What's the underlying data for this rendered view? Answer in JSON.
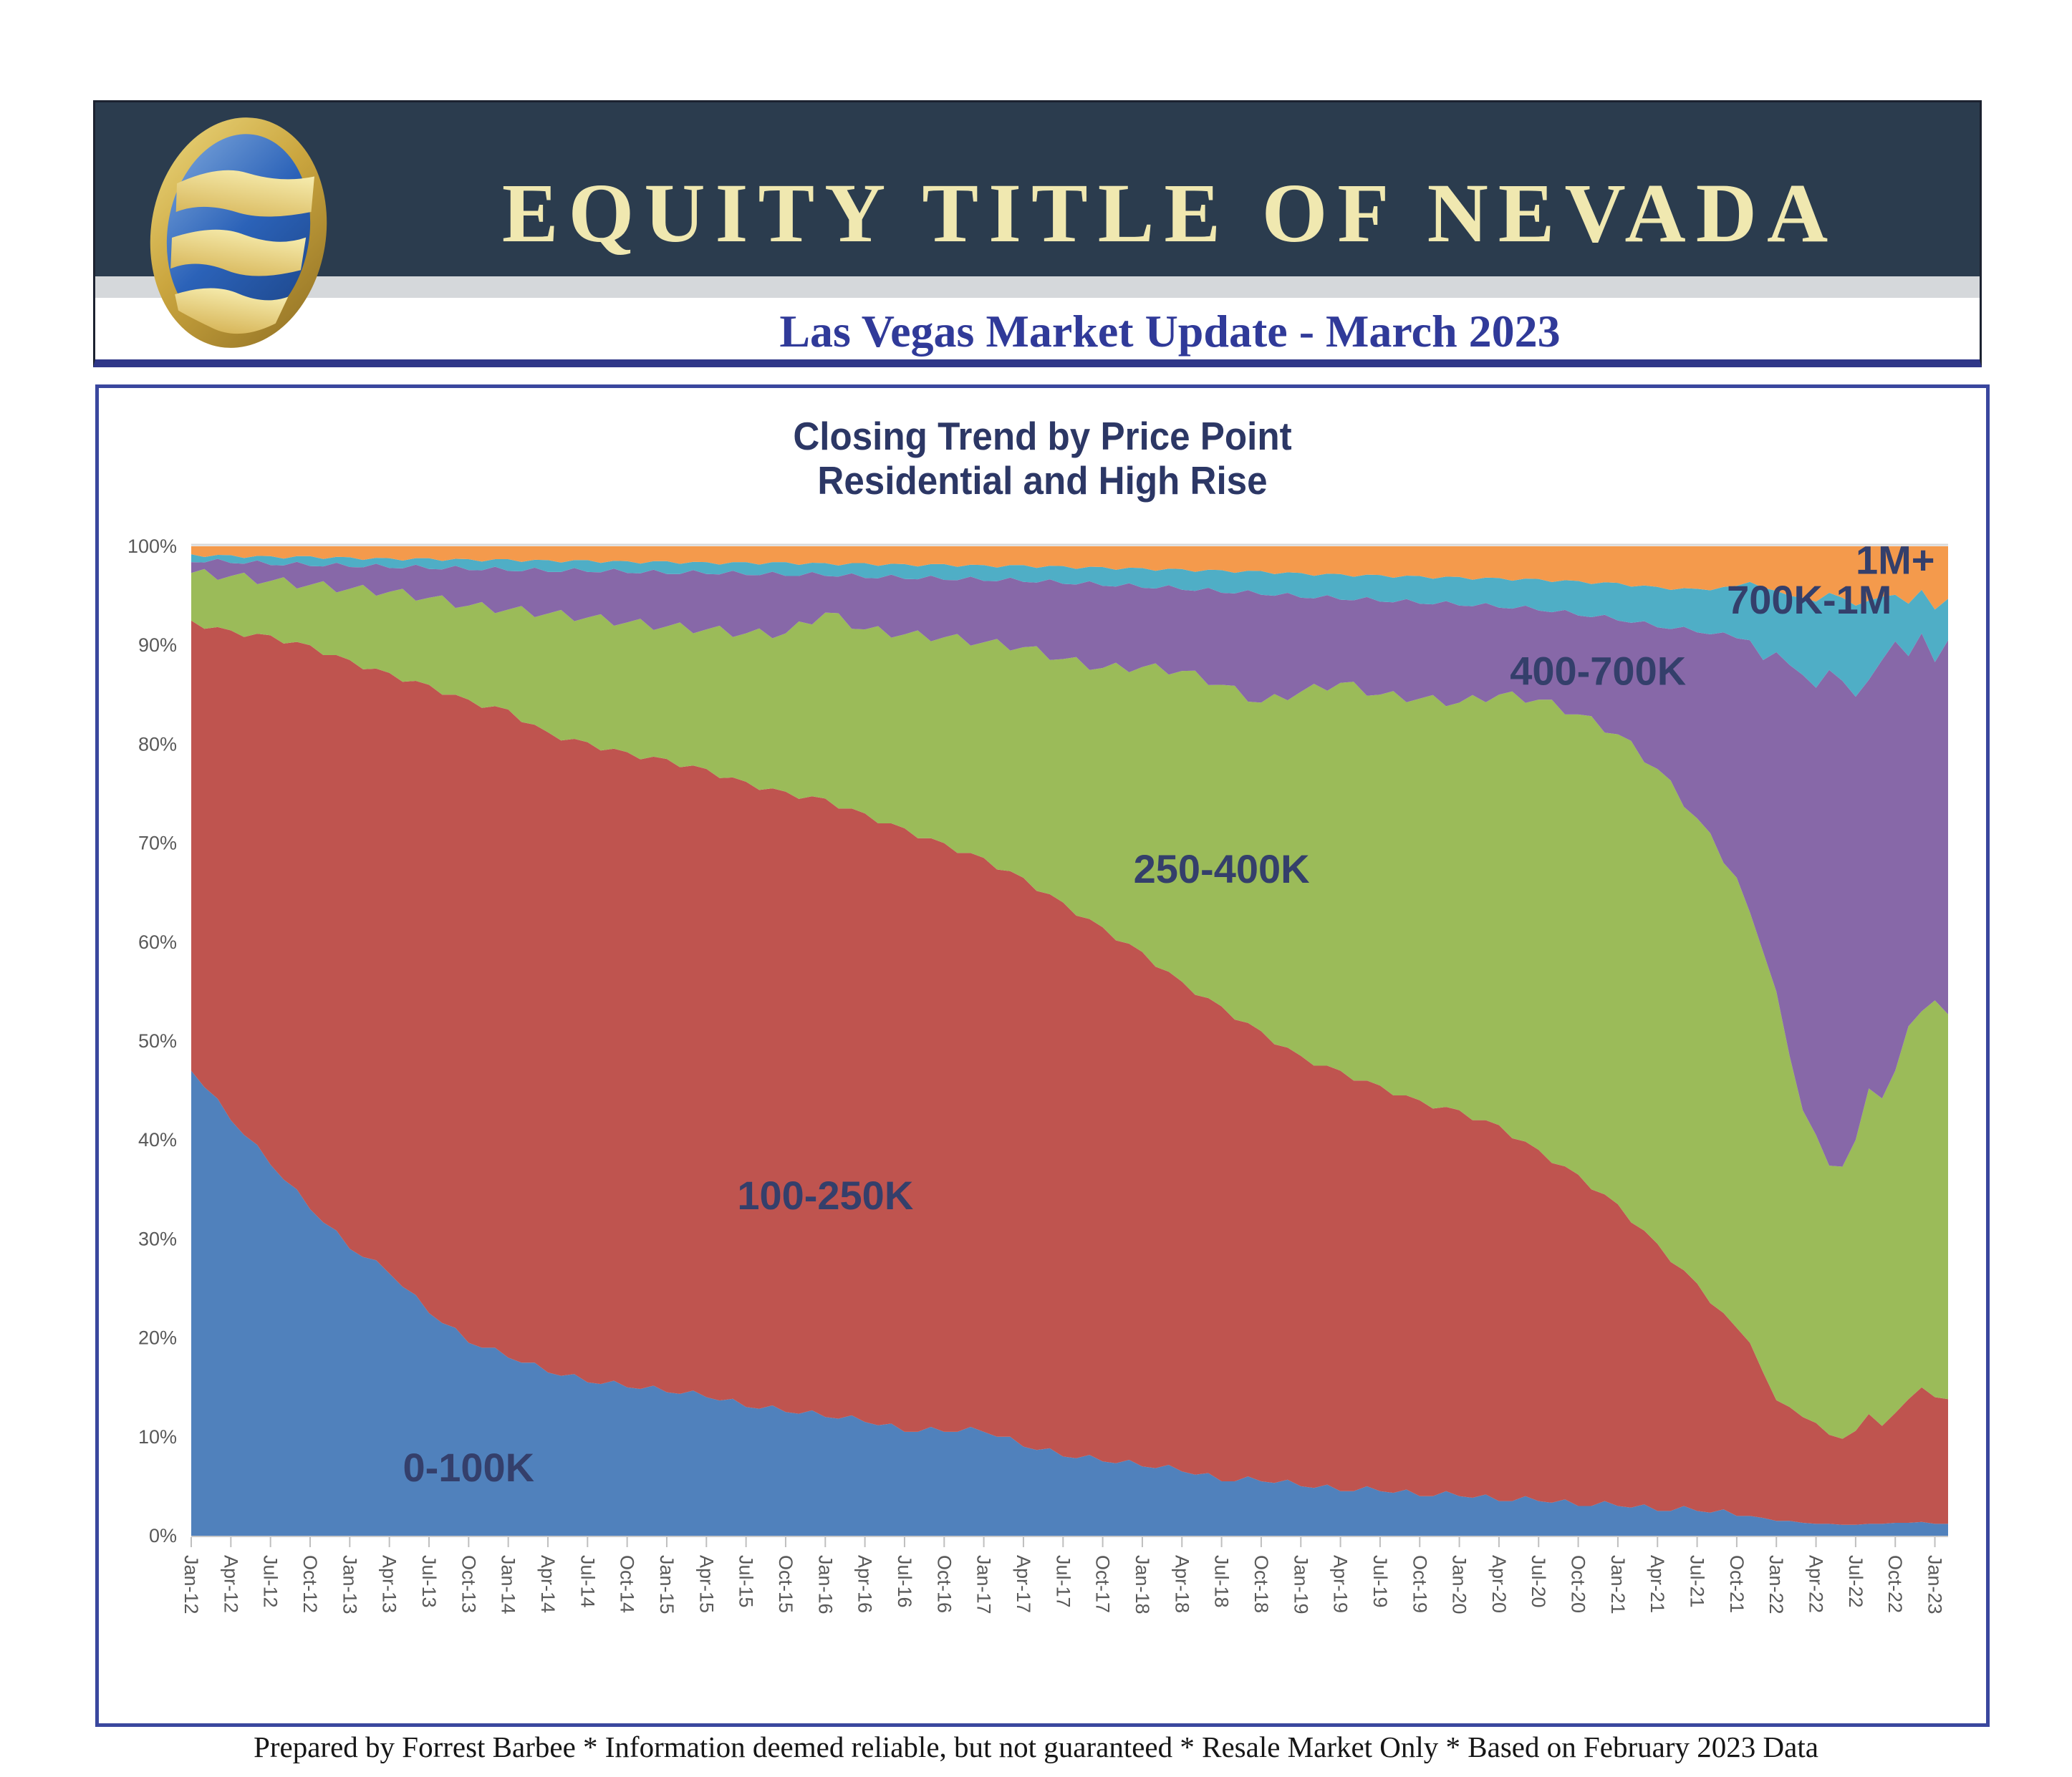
{
  "header": {
    "title": "EQUITY TITLE OF NEVADA",
    "subtitle": "Las Vegas Market Update - March 2023"
  },
  "chart": {
    "title_line1": "Closing Trend by Price Point",
    "title_line2": "Residential and High Rise"
  },
  "footer": {
    "text": "Prepared by Forrest Barbee * Information deemed reliable, but not guaranteed * Resale Market Only * Based on February 2023 Data"
  },
  "colors": {
    "header_band": "#2B3C4E",
    "header_title_text": "#F0E8B0",
    "subtitle_text": "#303A99",
    "panel_border": "#3A479E",
    "chart_title_text": "#2C3765",
    "area_label_text": "#343F6B",
    "axis_label_text": "#595959",
    "gridline": "#D9D9D9",
    "tick": "#BFBFBF"
  },
  "chart_data": {
    "type": "area",
    "stacking": "percent",
    "title": "Closing Trend by Price Point",
    "subtitle": "Residential and High Rise",
    "xlabel": "",
    "ylabel": "",
    "ylim": [
      0,
      100
    ],
    "grid": false,
    "x_unit": "months, index 0 = Jan-2012 through index 133 = Feb-2023",
    "series_names": [
      "0-100K",
      "100-250K",
      "250-400K",
      "400-700K",
      "700K-1M",
      "1M+"
    ],
    "series_colors": [
      "#5081BC",
      "#BF544F",
      "#9BBB59",
      "#8768A8",
      "#4FAEC6",
      "#F49A4C"
    ],
    "y_tick_labels": [
      "0%",
      "10%",
      "20%",
      "30%",
      "40%",
      "50%",
      "60%",
      "70%",
      "80%",
      "90%",
      "100%"
    ],
    "x_tick_months": [
      0,
      3,
      6,
      9,
      12,
      15,
      18,
      21,
      24,
      27,
      30,
      33,
      36,
      39,
      42,
      45,
      48,
      51,
      54,
      57,
      60,
      63,
      66,
      69,
      72,
      75,
      78,
      81,
      84,
      87,
      90,
      93,
      96,
      99,
      102,
      105,
      108,
      111,
      114,
      117,
      120,
      123,
      126,
      129,
      132
    ],
    "x_tick_labels": [
      "Jan-12",
      "Apr-12",
      "Jul-12",
      "Oct-12",
      "Jan-13",
      "Apr-13",
      "Jul-13",
      "Oct-13",
      "Jan-14",
      "Apr-14",
      "Jul-14",
      "Oct-14",
      "Jan-15",
      "Apr-15",
      "Jul-15",
      "Oct-15",
      "Jan-16",
      "Apr-16",
      "Jul-16",
      "Oct-16",
      "Jan-17",
      "Apr-17",
      "Jul-17",
      "Oct-17",
      "Jan-18",
      "Apr-18",
      "Jul-18",
      "Oct-18",
      "Jan-19",
      "Apr-19",
      "Jul-19",
      "Oct-19",
      "Jan-20",
      "Apr-20",
      "Jul-20",
      "Oct-20",
      "Jan-21",
      "Apr-21",
      "Jul-21",
      "Oct-21",
      "Jan-22",
      "Apr-22",
      "Jul-22",
      "Oct-22",
      "Jan-23"
    ],
    "points": [
      {
        "label": "Jan-12",
        "m": 0,
        "values": [
          47,
          45.5,
          4.8,
          1.1,
          0.8,
          0.8
        ]
      },
      {
        "label": "Apr-12",
        "m": 3,
        "values": [
          42,
          49.5,
          5.5,
          1.3,
          0.8,
          0.9
        ]
      },
      {
        "label": "Jul-12",
        "m": 6,
        "values": [
          37.5,
          53.5,
          5.5,
          1.6,
          0.9,
          1.0
        ]
      },
      {
        "label": "Oct-12",
        "m": 9,
        "values": [
          33,
          57,
          6.1,
          1.9,
          1.0,
          1.0
        ]
      },
      {
        "label": "Jan-13",
        "m": 12,
        "values": [
          29,
          59.5,
          7.2,
          2.2,
          1.0,
          1.1
        ]
      },
      {
        "label": "Apr-13",
        "m": 15,
        "values": [
          26.5,
          60.7,
          8.2,
          2.4,
          1.0,
          1.2
        ]
      },
      {
        "label": "Jul-13",
        "m": 18,
        "values": [
          22.5,
          63.5,
          8.8,
          2.9,
          1.1,
          1.2
        ]
      },
      {
        "label": "Oct-13",
        "m": 21,
        "values": [
          19.5,
          65,
          9.5,
          3.6,
          1.1,
          1.3
        ]
      },
      {
        "label": "Jan-14",
        "m": 24,
        "values": [
          18,
          65.5,
          10.1,
          3.9,
          1.2,
          1.3
        ]
      },
      {
        "label": "Apr-14",
        "m": 27,
        "values": [
          16.5,
          64.7,
          12,
          4.2,
          1.2,
          1.4
        ]
      },
      {
        "label": "Jul-14",
        "m": 30,
        "values": [
          15.5,
          64.7,
          12.6,
          4.6,
          1.2,
          1.4
        ]
      },
      {
        "label": "Oct-14",
        "m": 33,
        "values": [
          15,
          64.2,
          13.1,
          5.0,
          1.2,
          1.5
        ]
      },
      {
        "label": "Jan-15",
        "m": 36,
        "values": [
          14.5,
          64,
          13.4,
          5.3,
          1.3,
          1.5
        ]
      },
      {
        "label": "Apr-15",
        "m": 39,
        "values": [
          14,
          63.5,
          14.1,
          5.6,
          1.2,
          1.6
        ]
      },
      {
        "label": "Jul-15",
        "m": 42,
        "values": [
          13,
          63.2,
          15,
          5.9,
          1.3,
          1.6
        ]
      },
      {
        "label": "Oct-15",
        "m": 45,
        "values": [
          12.5,
          62.7,
          16,
          5.8,
          1.4,
          1.6
        ]
      },
      {
        "label": "Jan-16",
        "m": 48,
        "values": [
          12,
          62.5,
          18.8,
          3.7,
          1.3,
          1.7
        ]
      },
      {
        "label": "Apr-16",
        "m": 51,
        "values": [
          11.5,
          61.5,
          18.6,
          5.2,
          1.5,
          1.7
        ]
      },
      {
        "label": "Jul-16",
        "m": 54,
        "values": [
          10.5,
          61,
          19.6,
          5.6,
          1.5,
          1.8
        ]
      },
      {
        "label": "Oct-16",
        "m": 57,
        "values": [
          10.5,
          59.5,
          20.8,
          5.8,
          1.6,
          1.8
        ]
      },
      {
        "label": "Jan-17",
        "m": 60,
        "values": [
          10.5,
          58,
          21.8,
          6.2,
          1.6,
          1.9
        ]
      },
      {
        "label": "Apr-17",
        "m": 63,
        "values": [
          9,
          57.5,
          23.3,
          6.6,
          1.7,
          1.9
        ]
      },
      {
        "label": "Jul-17",
        "m": 66,
        "values": [
          8,
          56,
          24.6,
          7.6,
          1.8,
          2.0
        ]
      },
      {
        "label": "Oct-17",
        "m": 69,
        "values": [
          7.5,
          54,
          26.2,
          8.3,
          1.9,
          2.1
        ]
      },
      {
        "label": "Jan-18",
        "m": 72,
        "values": [
          7,
          52,
          28.8,
          8.0,
          2.0,
          2.2
        ]
      },
      {
        "label": "Apr-18",
        "m": 75,
        "values": [
          6.5,
          49.5,
          31.4,
          8.2,
          2.1,
          2.3
        ]
      },
      {
        "label": "Jul-18",
        "m": 78,
        "values": [
          5.5,
          48,
          32.5,
          9.3,
          2.3,
          2.4
        ]
      },
      {
        "label": "Oct-18",
        "m": 81,
        "values": [
          5.5,
          45.5,
          33.2,
          10.9,
          2.4,
          2.5
        ]
      },
      {
        "label": "Jan-19",
        "m": 84,
        "values": [
          5,
          43.5,
          36.8,
          9.5,
          2.5,
          2.7
        ]
      },
      {
        "label": "Apr-19",
        "m": 87,
        "values": [
          4.5,
          42.5,
          39.2,
          8.4,
          2.6,
          2.8
        ]
      },
      {
        "label": "Jul-19",
        "m": 90,
        "values": [
          4.5,
          41,
          39.5,
          9.4,
          2.7,
          2.9
        ]
      },
      {
        "label": "Oct-19",
        "m": 93,
        "values": [
          4,
          40,
          40.6,
          9.6,
          2.8,
          3.0
        ]
      },
      {
        "label": "Jan-20",
        "m": 96,
        "values": [
          4,
          39,
          41.2,
          9.8,
          2.9,
          3.1
        ]
      },
      {
        "label": "Apr-20",
        "m": 99,
        "values": [
          3.5,
          38,
          43.5,
          8.8,
          3.0,
          3.2
        ]
      },
      {
        "label": "Jul-20",
        "m": 102,
        "values": [
          3.5,
          35.5,
          45.5,
          9.0,
          3.2,
          3.3
        ]
      },
      {
        "label": "Oct-20",
        "m": 105,
        "values": [
          3,
          33.5,
          46.5,
          10.0,
          3.5,
          3.5
        ]
      },
      {
        "label": "Jan-21",
        "m": 108,
        "values": [
          3,
          30.5,
          47.5,
          11.5,
          3.8,
          3.7
        ]
      },
      {
        "label": "Apr-21",
        "m": 111,
        "values": [
          2.5,
          27,
          48,
          14.3,
          4.1,
          4.1
        ]
      },
      {
        "label": "Jul-21",
        "m": 114,
        "values": [
          2.5,
          23,
          47,
          18.8,
          4.4,
          4.3
        ]
      },
      {
        "label": "Oct-21",
        "m": 117,
        "values": [
          2,
          19,
          45.5,
          24.2,
          5.3,
          4.0
        ]
      },
      {
        "label": "Nov-21",
        "m": 118,
        "values": [
          2,
          17.5,
          43.5,
          27.5,
          5.9,
          3.6
        ]
      },
      {
        "label": "Dec-21",
        "m": 119,
        "values": [
          1.8,
          14.7,
          42.5,
          29.5,
          7.3,
          4.2
        ]
      },
      {
        "label": "Jan-22",
        "m": 120,
        "values": [
          1.5,
          12.2,
          41.3,
          34.3,
          6.2,
          4.5
        ]
      },
      {
        "label": "Feb-22",
        "m": 121,
        "values": [
          1.5,
          11.5,
          35.5,
          39.5,
          7.0,
          5.0
        ]
      },
      {
        "label": "Mar-22",
        "m": 122,
        "values": [
          1.3,
          10.7,
          31,
          44,
          7.8,
          5.2
        ]
      },
      {
        "label": "Apr-22",
        "m": 123,
        "values": [
          1.2,
          10.2,
          29.1,
          45.2,
          8.7,
          5.6
        ]
      },
      {
        "label": "May-22",
        "m": 124,
        "values": [
          1.2,
          9,
          27.2,
          50.1,
          7.8,
          4.7
        ]
      },
      {
        "label": "Jun-22",
        "m": 125,
        "values": [
          1.1,
          8.7,
          27.5,
          49.1,
          8.4,
          5.2
        ]
      },
      {
        "label": "Jul-22",
        "m": 126,
        "values": [
          1.1,
          9.5,
          29.4,
          44.8,
          9.2,
          6.0
        ]
      },
      {
        "label": "Aug-22",
        "m": 127,
        "values": [
          1.2,
          11.1,
          32.9,
          41.3,
          8.0,
          5.5
        ]
      },
      {
        "label": "Sep-22",
        "m": 128,
        "values": [
          1.2,
          9.9,
          33.1,
          44.3,
          6.4,
          5.1
        ]
      },
      {
        "label": "Oct-22",
        "m": 129,
        "values": [
          1.3,
          11.1,
          34.6,
          43.4,
          4.7,
          4.9
        ]
      },
      {
        "label": "Nov-22",
        "m": 130,
        "values": [
          1.3,
          12.5,
          37.7,
          37.4,
          5.3,
          5.8
        ]
      },
      {
        "label": "Dec-22",
        "m": 131,
        "values": [
          1.4,
          13.6,
          38,
          38.2,
          4.4,
          4.4
        ]
      },
      {
        "label": "Jan-23",
        "m": 132,
        "values": [
          1.2,
          12.8,
          40.1,
          34.2,
          5.3,
          6.4
        ]
      },
      {
        "label": "Feb-23",
        "m": 133,
        "values": [
          1.2,
          12.6,
          38.9,
          37.8,
          4.2,
          5.3
        ]
      }
    ],
    "annotations": [
      {
        "text": "0-100K",
        "m": 21,
        "pct": 5.5
      },
      {
        "text": "100-250K",
        "m": 48,
        "pct": 33
      },
      {
        "text": "250-400K",
        "m": 78,
        "pct": 66
      },
      {
        "text": "400-700K",
        "m": 106.5,
        "pct": 86
      },
      {
        "text": "700K-1M",
        "m": 122.5,
        "pct": 93.2
      },
      {
        "text": "1M+",
        "m": 129,
        "pct": 97.2
      }
    ],
    "legend_position": "none"
  }
}
